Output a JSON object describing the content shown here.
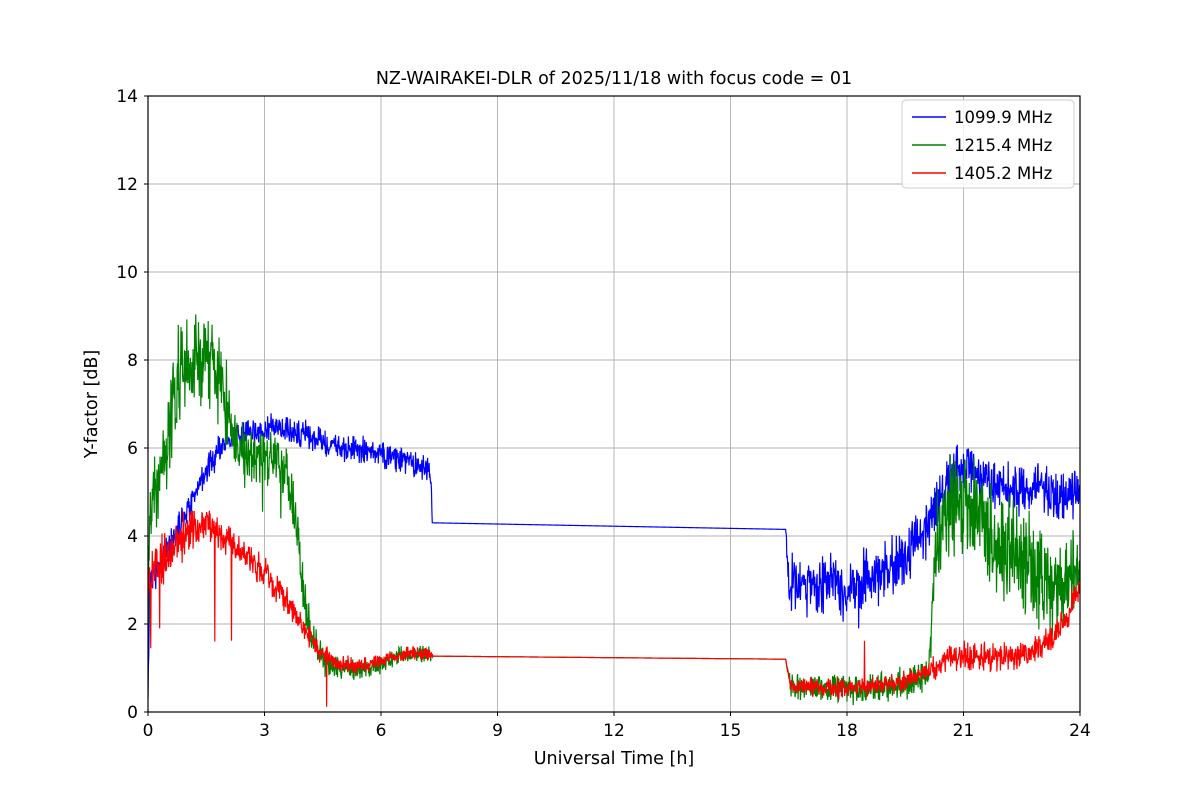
{
  "chart_data": {
    "type": "line",
    "title": "NZ-WAIRAKEI-DLR of 2025/11/18 with focus code = 01",
    "xlabel": "Universal Time [h]",
    "ylabel": "Y-factor [dB]",
    "xlim": [
      0,
      24
    ],
    "ylim": [
      0,
      14
    ],
    "xticks": [
      0,
      3,
      6,
      9,
      12,
      15,
      18,
      21,
      24
    ],
    "yticks": [
      0,
      2,
      4,
      6,
      8,
      10,
      12,
      14
    ],
    "grid": true,
    "grid_color": "#b0b0b0",
    "background": "#ffffff",
    "legend": {
      "position": "upper right",
      "frame_color": "#cccccc"
    },
    "series": [
      {
        "name": "1099.9 MHz",
        "color": "#0000ff",
        "mean": [
          [
            0,
            0.05
          ],
          [
            0.04,
            3.0
          ],
          [
            0.3,
            3.3
          ],
          [
            0.6,
            3.8
          ],
          [
            1.0,
            4.6
          ],
          [
            1.5,
            5.5
          ],
          [
            2.0,
            6.15
          ],
          [
            2.4,
            6.3
          ],
          [
            2.8,
            6.3
          ],
          [
            3.2,
            6.45
          ],
          [
            3.6,
            6.4
          ],
          [
            4.0,
            6.3
          ],
          [
            4.5,
            6.1
          ],
          [
            5.0,
            6.0
          ],
          [
            5.5,
            5.95
          ],
          [
            6.0,
            5.85
          ],
          [
            6.5,
            5.75
          ],
          [
            7.0,
            5.6
          ],
          [
            7.28,
            5.5
          ],
          [
            7.32,
            4.3
          ],
          [
            16.42,
            4.15
          ],
          [
            16.5,
            2.95
          ],
          [
            17.0,
            2.9
          ],
          [
            17.5,
            2.95
          ],
          [
            18.0,
            2.85
          ],
          [
            18.5,
            3.05
          ],
          [
            19.0,
            3.15
          ],
          [
            19.5,
            3.5
          ],
          [
            20.0,
            4.1
          ],
          [
            20.4,
            4.9
          ],
          [
            20.8,
            5.5
          ],
          [
            21.1,
            5.6
          ],
          [
            21.5,
            5.35
          ],
          [
            22.0,
            5.1
          ],
          [
            22.5,
            5.0
          ],
          [
            23.0,
            5.1
          ],
          [
            23.5,
            4.9
          ],
          [
            24,
            4.95
          ]
        ],
        "noise": [
          [
            0,
            0.3
          ],
          [
            2,
            0.28
          ],
          [
            7.28,
            0.25
          ],
          [
            7.32,
            0
          ],
          [
            16.42,
            0
          ],
          [
            16.5,
            0.6
          ],
          [
            19.5,
            0.6
          ],
          [
            20.5,
            0.5
          ],
          [
            24,
            0.45
          ]
        ],
        "spikes": [
          [
            17.9,
            2.05
          ],
          [
            18.3,
            1.9
          ]
        ]
      },
      {
        "name": "1215.4 MHz",
        "color": "#008000",
        "mean": [
          [
            0,
            3.5
          ],
          [
            0.05,
            4.6
          ],
          [
            0.3,
            5.5
          ],
          [
            0.5,
            6.2
          ],
          [
            0.7,
            7.5
          ],
          [
            1.0,
            7.8
          ],
          [
            1.3,
            8.0
          ],
          [
            1.6,
            7.9
          ],
          [
            1.85,
            7.6
          ],
          [
            2.1,
            6.7
          ],
          [
            2.35,
            5.9
          ],
          [
            2.7,
            5.75
          ],
          [
            3.0,
            5.8
          ],
          [
            3.3,
            5.65
          ],
          [
            3.6,
            5.35
          ],
          [
            3.8,
            4.5
          ],
          [
            4.0,
            2.8
          ],
          [
            4.2,
            1.7
          ],
          [
            4.5,
            1.15
          ],
          [
            5.0,
            0.95
          ],
          [
            5.5,
            0.95
          ],
          [
            6.0,
            1.1
          ],
          [
            6.5,
            1.3
          ],
          [
            7.0,
            1.35
          ],
          [
            7.28,
            1.3
          ],
          [
            7.35,
            1.27
          ],
          [
            16.42,
            1.2
          ],
          [
            16.55,
            0.6
          ],
          [
            17.5,
            0.52
          ],
          [
            18.5,
            0.5
          ],
          [
            19.5,
            0.65
          ],
          [
            20.1,
            0.85
          ],
          [
            20.3,
            4.0
          ],
          [
            20.6,
            4.6
          ],
          [
            20.9,
            4.8
          ],
          [
            21.2,
            4.65
          ],
          [
            21.6,
            4.3
          ],
          [
            22.0,
            3.7
          ],
          [
            22.5,
            3.4
          ],
          [
            23.0,
            3.05
          ],
          [
            23.5,
            2.8
          ],
          [
            24,
            3.2
          ]
        ],
        "noise": [
          [
            0,
            0.7
          ],
          [
            0.7,
            0.95
          ],
          [
            1.9,
            0.85
          ],
          [
            2.35,
            0.55
          ],
          [
            3.6,
            0.5
          ],
          [
            4.2,
            0.35
          ],
          [
            5.0,
            0.2
          ],
          [
            7.28,
            0.15
          ],
          [
            7.35,
            0
          ],
          [
            16.42,
            0
          ],
          [
            16.55,
            0.25
          ],
          [
            20.1,
            0.3
          ],
          [
            20.35,
            1.0
          ],
          [
            21.5,
            1.05
          ],
          [
            24,
            0.85
          ]
        ],
        "spikes": [
          [
            0.01,
            2.0
          ],
          [
            0.85,
            8.75
          ],
          [
            1.2,
            8.8
          ],
          [
            1.45,
            8.7
          ],
          [
            2.95,
            4.55
          ],
          [
            3.42,
            4.4
          ]
        ]
      },
      {
        "name": "1405.2 MHz",
        "color": "#ff0000",
        "mean": [
          [
            0,
            2.6
          ],
          [
            0.15,
            3.2
          ],
          [
            0.5,
            3.6
          ],
          [
            0.9,
            3.95
          ],
          [
            1.2,
            4.15
          ],
          [
            1.5,
            4.25
          ],
          [
            1.8,
            4.05
          ],
          [
            2.1,
            3.9
          ],
          [
            2.4,
            3.65
          ],
          [
            2.8,
            3.35
          ],
          [
            3.2,
            2.95
          ],
          [
            3.6,
            2.5
          ],
          [
            4.0,
            1.9
          ],
          [
            4.4,
            1.4
          ],
          [
            4.8,
            1.15
          ],
          [
            5.3,
            1.05
          ],
          [
            5.8,
            1.1
          ],
          [
            6.3,
            1.25
          ],
          [
            6.8,
            1.35
          ],
          [
            7.28,
            1.3
          ],
          [
            7.35,
            1.27
          ],
          [
            16.42,
            1.2
          ],
          [
            16.55,
            0.58
          ],
          [
            17.5,
            0.52
          ],
          [
            18.5,
            0.58
          ],
          [
            19.0,
            0.6
          ],
          [
            19.5,
            0.7
          ],
          [
            20.0,
            0.9
          ],
          [
            20.5,
            1.15
          ],
          [
            21.0,
            1.3
          ],
          [
            21.5,
            1.25
          ],
          [
            22.0,
            1.25
          ],
          [
            22.6,
            1.35
          ],
          [
            23.0,
            1.5
          ],
          [
            23.4,
            1.8
          ],
          [
            23.7,
            2.2
          ],
          [
            24,
            2.85
          ]
        ],
        "noise": [
          [
            0,
            0.55
          ],
          [
            1.5,
            0.35
          ],
          [
            3.0,
            0.3
          ],
          [
            4.4,
            0.22
          ],
          [
            5.5,
            0.15
          ],
          [
            7.28,
            0.12
          ],
          [
            7.35,
            0
          ],
          [
            16.42,
            0
          ],
          [
            16.55,
            0.18
          ],
          [
            20.0,
            0.2
          ],
          [
            21.0,
            0.28
          ],
          [
            23.0,
            0.28
          ],
          [
            24,
            0.3
          ]
        ],
        "spikes": [
          [
            0.07,
            1.45
          ],
          [
            0.3,
            1.9
          ],
          [
            1.72,
            1.6
          ],
          [
            2.15,
            1.62
          ],
          [
            4.6,
            0.12
          ],
          [
            18.45,
            1.62
          ]
        ]
      }
    ]
  }
}
